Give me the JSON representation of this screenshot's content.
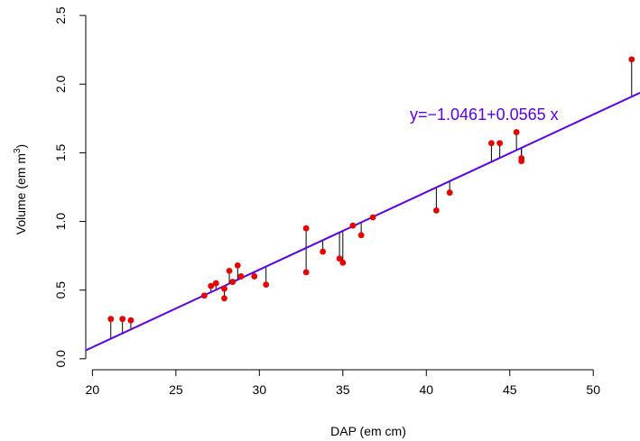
{
  "chart_data": {
    "type": "scatter",
    "title": "",
    "xlabel": "DAP (em cm)",
    "ylabel_main": "Volume (em m",
    "ylabel_sup": "3",
    "ylabel_close": ")",
    "xlim": [
      19.6,
      52.8
    ],
    "ylim": [
      -0.08,
      2.56
    ],
    "xticks": [
      20,
      25,
      30,
      35,
      40,
      45,
      50
    ],
    "yticks": [
      0.0,
      0.5,
      1.0,
      1.5,
      2.0,
      2.5
    ],
    "xtick_labels": [
      "20",
      "25",
      "30",
      "35",
      "40",
      "45",
      "50"
    ],
    "ytick_labels": [
      "0.0",
      "0.5",
      "1.0",
      "1.5",
      "2.0",
      "2.5"
    ],
    "grid": false,
    "regression": {
      "intercept": -1.0461,
      "slope": 0.0565,
      "label": "y=−1.0461+0.0565 x",
      "color": "#5b00e6"
    },
    "residual_color": "#000000",
    "point_color": "#e60000",
    "points": [
      {
        "x": 21.1,
        "y": 0.29
      },
      {
        "x": 21.8,
        "y": 0.29
      },
      {
        "x": 22.3,
        "y": 0.28
      },
      {
        "x": 26.7,
        "y": 0.46
      },
      {
        "x": 27.1,
        "y": 0.53
      },
      {
        "x": 27.4,
        "y": 0.55
      },
      {
        "x": 27.9,
        "y": 0.51
      },
      {
        "x": 27.9,
        "y": 0.44
      },
      {
        "x": 28.2,
        "y": 0.64
      },
      {
        "x": 28.4,
        "y": 0.56
      },
      {
        "x": 28.7,
        "y": 0.68
      },
      {
        "x": 28.9,
        "y": 0.6
      },
      {
        "x": 29.7,
        "y": 0.6
      },
      {
        "x": 30.4,
        "y": 0.54
      },
      {
        "x": 32.8,
        "y": 0.95
      },
      {
        "x": 32.8,
        "y": 0.63
      },
      {
        "x": 33.8,
        "y": 0.78
      },
      {
        "x": 34.8,
        "y": 0.73
      },
      {
        "x": 35.0,
        "y": 0.7
      },
      {
        "x": 35.6,
        "y": 0.97
      },
      {
        "x": 36.1,
        "y": 0.9
      },
      {
        "x": 36.8,
        "y": 1.03
      },
      {
        "x": 40.6,
        "y": 1.08
      },
      {
        "x": 41.4,
        "y": 1.21
      },
      {
        "x": 43.9,
        "y": 1.57
      },
      {
        "x": 44.4,
        "y": 1.57
      },
      {
        "x": 45.4,
        "y": 1.65
      },
      {
        "x": 45.7,
        "y": 1.46
      },
      {
        "x": 45.7,
        "y": 1.44
      },
      {
        "x": 52.3,
        "y": 2.18
      }
    ]
  }
}
